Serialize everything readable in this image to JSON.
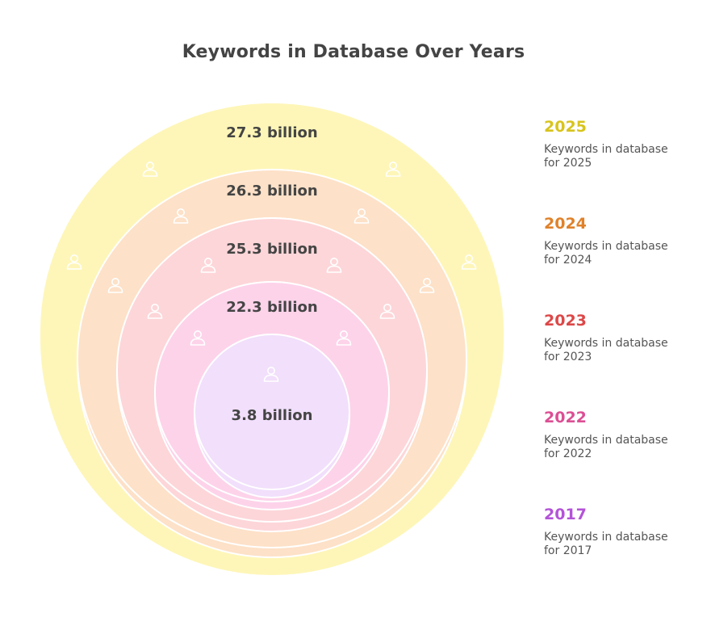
{
  "title": "Keywords in Database Over Years",
  "rings": [
    {
      "year": "2025",
      "value": "27.3 billion",
      "description": "Keywords in database for 2025",
      "color": "#fef6b8",
      "accent": "#d8c41c"
    },
    {
      "year": "2024",
      "value": "26.3 billion",
      "description": "Keywords in database for 2024",
      "color": "#fde1c8",
      "accent": "#e0822a"
    },
    {
      "year": "2023",
      "value": "25.3 billion",
      "description": "Keywords in database for 2023",
      "color": "#fdd6d9",
      "accent": "#dd4848"
    },
    {
      "year": "2022",
      "value": "22.3 billion",
      "description": "Keywords in database for 2022",
      "color": "#fdd3ea",
      "accent": "#dc4f94"
    },
    {
      "year": "2017",
      "value": "3.8 billion",
      "description": "Keywords in database for 2017",
      "color": "#f1dffb",
      "accent": "#b353d8"
    }
  ],
  "icons": {
    "ring_icon": "user-icon"
  }
}
